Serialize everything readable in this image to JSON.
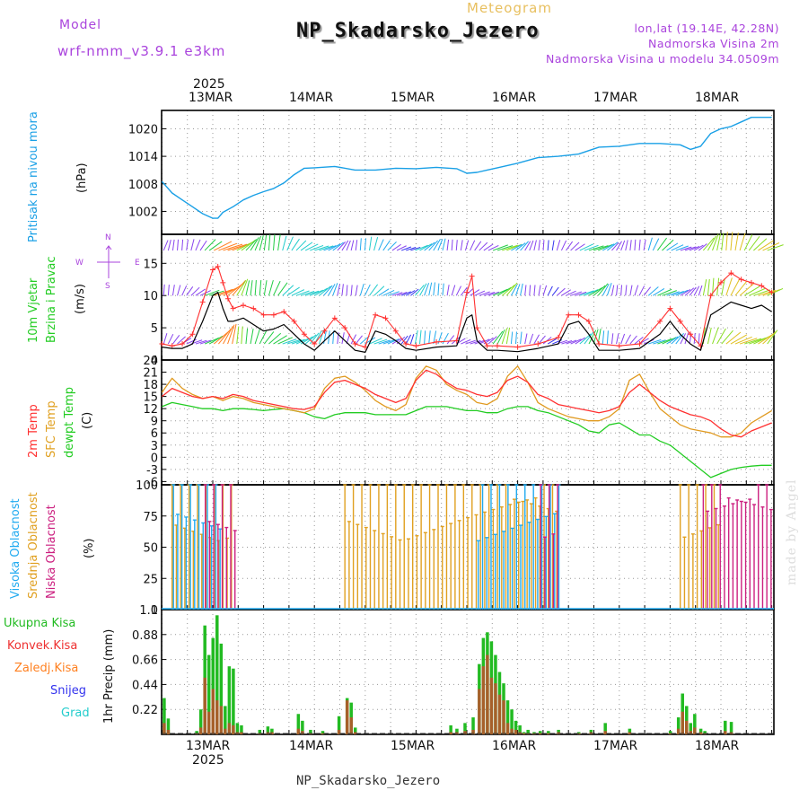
{
  "header": {
    "model_label": "Model",
    "model_name": "wrf-nmm_v3.9.1 e3km",
    "meteogram": "Meteogram",
    "station": "NP_Skadarsko_Jezero",
    "coords": "lon,lat (19.14E, 42.28N)",
    "elevation": "Nadmorska Visina 2m",
    "model_elevation": "Nadmorska Visina u modelu 34.0509m",
    "footer_station": "NP_Skadarsko_Jezero",
    "credit": "made by Angel"
  },
  "colors": {
    "pressure": "#1aa0e6",
    "wind_speed": "#000000",
    "gust": "#ff3030",
    "temp2m": "#ff3030",
    "sfc_temp": "#e09a20",
    "dewpoint": "#22cc22",
    "high_cloud": "#20aaf0",
    "mid_cloud": "#e0a020",
    "low_cloud": "#cc2080",
    "total_precip": "#22bb22",
    "convective_precip": "#ee3030",
    "frozen_precip": "#ff8020",
    "snow": "#3333ee",
    "graupel": "#22cccc",
    "label_purple": "#aa44dd"
  },
  "chart_data": [
    {
      "id": "pressure",
      "type": "line",
      "ylabel": "(hPa)",
      "legend": [
        "Pritisak na nivou mora"
      ],
      "yticks": [
        1002,
        1008,
        1014,
        1020
      ],
      "ylim": [
        997,
        1024
      ],
      "x_unit": "days since 12MAR 00Z",
      "x": [
        0.5,
        0.6,
        0.7,
        0.8,
        0.9,
        1.0,
        1.05,
        1.1,
        1.2,
        1.3,
        1.4,
        1.5,
        1.6,
        1.7,
        1.8,
        1.9,
        2.0,
        2.2,
        2.4,
        2.6,
        2.8,
        3.0,
        3.2,
        3.4,
        3.5,
        3.6,
        3.7,
        3.8,
        4.0,
        4.2,
        4.4,
        4.6,
        4.8,
        5.0,
        5.2,
        5.4,
        5.6,
        5.7,
        5.8,
        5.9,
        6.0,
        6.1,
        6.2,
        6.3,
        6.5
      ],
      "values": [
        1008.5,
        1006,
        1004.5,
        1003,
        1001.5,
        1000.5,
        1000.5,
        1001.8,
        1003,
        1004.5,
        1005.5,
        1006.3,
        1007,
        1008.2,
        1010,
        1011.4,
        1011.5,
        1011.8,
        1011,
        1011,
        1011.4,
        1011.3,
        1011.6,
        1011.3,
        1010.3,
        1010.5,
        1011,
        1011.5,
        1012.5,
        1013.7,
        1014,
        1014.5,
        1016,
        1016.2,
        1016.8,
        1016.8,
        1016.5,
        1015.5,
        1016.2,
        1019,
        1020,
        1020.5,
        1021.5,
        1022.5,
        1022.5
      ]
    },
    {
      "id": "wind",
      "type": "line",
      "ylabel": "(m/s)",
      "legend": [
        "10m Vjetar",
        "Brzina i Pravac"
      ],
      "compass": [
        "N",
        "E",
        "S",
        "W"
      ],
      "yticks": [
        0,
        5,
        10,
        15
      ],
      "ylim": [
        0,
        19.5
      ],
      "x": [
        0.5,
        0.6,
        0.7,
        0.8,
        0.9,
        1.0,
        1.05,
        1.1,
        1.15,
        1.2,
        1.3,
        1.4,
        1.5,
        1.6,
        1.7,
        1.8,
        1.9,
        2.0,
        2.1,
        2.2,
        2.3,
        2.4,
        2.5,
        2.6,
        2.7,
        2.8,
        2.9,
        3.0,
        3.2,
        3.4,
        3.5,
        3.55,
        3.6,
        3.7,
        3.8,
        4.0,
        4.2,
        4.4,
        4.5,
        4.6,
        4.7,
        4.8,
        5.0,
        5.2,
        5.4,
        5.5,
        5.6,
        5.7,
        5.8,
        5.9,
        6.0,
        6.1,
        6.2,
        6.3,
        6.4,
        6.5
      ],
      "speed": [
        2,
        1.8,
        1.8,
        2.5,
        6,
        10,
        10.5,
        8,
        6,
        6,
        6.5,
        5.5,
        4.5,
        4.8,
        5.5,
        4,
        2.5,
        1.5,
        3,
        4.5,
        3,
        1.5,
        1.2,
        4.5,
        4,
        3,
        1.8,
        1.5,
        2,
        2.2,
        6.5,
        7,
        3,
        1.5,
        1.5,
        1.3,
        1.8,
        2.5,
        5.5,
        6,
        4,
        1.5,
        1.5,
        1.8,
        4,
        6,
        4,
        2.5,
        1.5,
        7,
        8,
        9,
        8.5,
        8,
        8.5,
        7.5
      ],
      "gust": [
        2.5,
        2.2,
        2.5,
        4,
        9,
        14,
        14.5,
        12,
        9.5,
        8,
        8.5,
        8,
        7,
        7,
        7.5,
        6,
        4,
        2.5,
        4.5,
        6.5,
        5,
        2.5,
        2,
        7,
        6.5,
        4.5,
        2.5,
        2.2,
        2.8,
        3,
        10.5,
        13,
        5,
        2.2,
        2.2,
        2,
        2.5,
        3.5,
        7,
        7,
        6,
        2.5,
        2.2,
        2.5,
        6,
        8,
        6,
        4,
        2.2,
        10,
        12,
        13.5,
        12.5,
        12,
        11.5,
        10.5
      ]
    },
    {
      "id": "temperature",
      "type": "line",
      "ylabel": "(C)",
      "legend": [
        "2m Temp",
        "SFC Temp",
        "dewpt Temp"
      ],
      "yticks": [
        -6,
        -3,
        0,
        3,
        6,
        9,
        12,
        15,
        18,
        21,
        24
      ],
      "ylim": [
        -6.8,
        24
      ],
      "x": [
        0.5,
        0.6,
        0.7,
        0.8,
        0.9,
        1.0,
        1.1,
        1.2,
        1.3,
        1.4,
        1.5,
        1.6,
        1.7,
        1.8,
        1.9,
        2.0,
        2.1,
        2.2,
        2.3,
        2.4,
        2.5,
        2.6,
        2.7,
        2.8,
        2.9,
        3.0,
        3.1,
        3.2,
        3.3,
        3.4,
        3.5,
        3.6,
        3.7,
        3.8,
        3.9,
        4.0,
        4.1,
        4.2,
        4.3,
        4.4,
        4.5,
        4.6,
        4.7,
        4.8,
        4.9,
        5.0,
        5.1,
        5.2,
        5.3,
        5.4,
        5.5,
        5.6,
        5.7,
        5.8,
        5.9,
        6.0,
        6.1,
        6.2,
        6.3,
        6.4,
        6.5
      ],
      "temp2m": [
        15,
        17,
        16,
        15,
        14.5,
        15,
        14.5,
        15.5,
        15,
        14,
        13.5,
        13,
        12.5,
        12,
        11.8,
        12.5,
        16,
        18.5,
        19,
        18,
        17,
        15.5,
        14.5,
        13.5,
        14.5,
        19,
        21.5,
        20.5,
        18.5,
        17,
        16.5,
        15.5,
        15,
        16,
        19,
        20,
        18.5,
        15.5,
        14.5,
        13,
        12.5,
        12,
        11.5,
        11,
        11.5,
        12.5,
        16,
        18,
        16,
        14,
        12.5,
        11.5,
        10.5,
        10,
        9,
        7,
        5.5,
        5,
        6.5,
        7.5,
        8.5
      ],
      "sfc_temp": [
        16,
        19.5,
        17,
        15.5,
        14.5,
        15,
        14,
        15,
        14.5,
        13.5,
        13,
        12.5,
        12,
        11.5,
        11,
        12,
        17,
        19.5,
        20,
        18.5,
        16.5,
        14,
        12.5,
        11.5,
        13,
        19.5,
        22.5,
        21.5,
        18,
        16.5,
        15.5,
        13.5,
        13,
        14.5,
        20,
        22.5,
        18.5,
        13.5,
        12,
        11,
        10,
        9.5,
        9,
        9,
        10,
        12,
        19,
        20.5,
        16,
        12,
        10,
        8,
        7,
        6.5,
        6,
        5,
        5,
        6,
        8.5,
        10,
        11.5
      ],
      "dewpoint": [
        12.5,
        13.5,
        13,
        12.5,
        12,
        12,
        11.5,
        12,
        12,
        11.8,
        11.5,
        11.8,
        12,
        11.5,
        11,
        10,
        9.5,
        10.5,
        11,
        11,
        11,
        10.5,
        10.5,
        10.5,
        10.5,
        11.5,
        12.5,
        12.5,
        12.5,
        12,
        11.5,
        11.5,
        11,
        11,
        12,
        12.5,
        12.5,
        11.5,
        11,
        10,
        9,
        8,
        6.5,
        6,
        8,
        8.5,
        7,
        5.5,
        5.5,
        4,
        3,
        1,
        -1,
        -3,
        -5,
        -4,
        -3,
        -2.5,
        -2.2,
        -2,
        -2
      ]
    },
    {
      "id": "cloud",
      "type": "bar",
      "ylabel": "(%)",
      "legend": [
        "Visoka Oblacnost",
        "Srednja Oblacnost",
        "Niska Oblacnost"
      ],
      "yticks": [
        0,
        25,
        50,
        75,
        100
      ],
      "ylim": [
        0,
        100
      ],
      "high_periods": [
        [
          0.6,
          1.1
        ],
        [
          3.6,
          4.4
        ]
      ],
      "mid_periods": [
        [
          0.6,
          1.2
        ],
        [
          2.3,
          4.4
        ],
        [
          5.6,
          6.0
        ]
      ],
      "low_periods": [
        [
          0.9,
          1.2
        ],
        [
          4.2,
          4.4
        ],
        [
          5.8,
          6.5
        ]
      ]
    },
    {
      "id": "precip",
      "type": "bar",
      "ylabel": "1hr Precip (mm)",
      "legend": [
        "Ukupna Kisa",
        "Konvek.Kisa",
        "Zaledj.Kisa",
        "Snijeg",
        "Grad"
      ],
      "yticks": [
        0.22,
        0.44,
        0.66,
        0.88,
        1.1
      ],
      "ylim": [
        0,
        1.1
      ],
      "x": [
        0.52,
        0.56,
        0.84,
        0.88,
        0.92,
        0.96,
        1.0,
        1.04,
        1.08,
        1.12,
        1.16,
        1.2,
        1.24,
        1.28,
        1.46,
        1.54,
        1.58,
        1.84,
        1.88,
        1.96,
        2.08,
        2.24,
        2.32,
        2.36,
        2.4,
        3.34,
        3.4,
        3.48,
        3.56,
        3.62,
        3.66,
        3.7,
        3.74,
        3.78,
        3.82,
        3.86,
        3.9,
        3.94,
        3.98,
        4.02,
        4.06,
        4.1,
        4.16,
        4.22,
        4.3,
        4.4,
        4.6,
        4.72,
        4.86,
        5.1,
        5.5,
        5.58,
        5.62,
        5.66,
        5.7,
        5.74,
        5.8,
        5.84,
        6.04,
        6.1
      ],
      "total": [
        0.32,
        0.14,
        0.03,
        0.22,
        0.96,
        0.7,
        0.85,
        1.05,
        0.8,
        0.25,
        0.6,
        0.58,
        0.1,
        0.08,
        0.04,
        0.07,
        0.05,
        0.18,
        0.12,
        0.04,
        0.03,
        0.16,
        0.32,
        0.28,
        0.06,
        0.08,
        0.05,
        0.1,
        0.15,
        0.62,
        0.85,
        0.9,
        0.82,
        0.7,
        0.55,
        0.45,
        0.3,
        0.22,
        0.12,
        0.08,
        0.02,
        0.04,
        0.02,
        0.03,
        0.03,
        0.04,
        0.02,
        0.04,
        0.1,
        0.05,
        0.03,
        0.15,
        0.36,
        0.25,
        0.1,
        0.18,
        0.05,
        0.03,
        0.12,
        0.11
      ],
      "convective": [
        0.1,
        0.04,
        0.01,
        0.06,
        0.5,
        0.2,
        0.4,
        0.3,
        0.25,
        0.05,
        0.1,
        0.08,
        0.02,
        0.02,
        0.01,
        0.02,
        0.02,
        0.05,
        0.03,
        0.01,
        0.01,
        0.04,
        0.3,
        0.15,
        0.02,
        0.02,
        0.02,
        0.03,
        0.04,
        0.4,
        0.6,
        0.7,
        0.5,
        0.45,
        0.35,
        0.3,
        0.1,
        0.05,
        0.04,
        0.02,
        0.01,
        0.01,
        0.01,
        0.01,
        0.01,
        0.02,
        0.01,
        0.02,
        0.03,
        0.02,
        0.01,
        0.05,
        0.2,
        0.12,
        0.03,
        0.06,
        0.02,
        0.01,
        0.03,
        0.02
      ]
    }
  ],
  "time_axis": {
    "year": "2025",
    "labels": [
      "13MAR",
      "14MAR",
      "15MAR",
      "16MAR",
      "17MAR",
      "18MAR"
    ]
  }
}
